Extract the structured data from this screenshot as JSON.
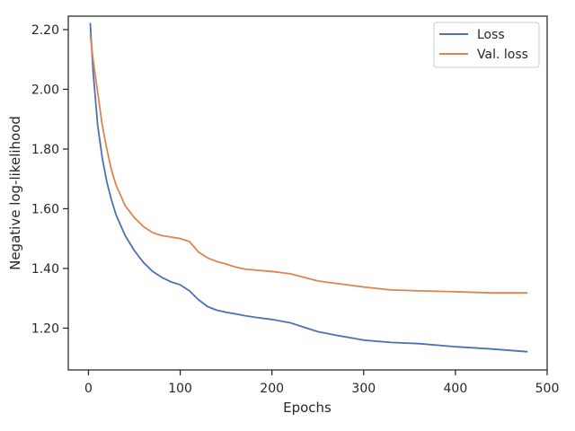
{
  "chart_data": {
    "type": "line",
    "xlabel": "Epochs",
    "ylabel": "Negative log-likelihood",
    "xlim": [
      -22,
      500
    ],
    "ylim": [
      1.06,
      2.245
    ],
    "xticks": [
      0,
      100,
      200,
      300,
      400,
      500
    ],
    "xtick_labels": [
      "0",
      "100",
      "200",
      "300",
      "400",
      "500"
    ],
    "yticks": [
      1.2,
      1.4,
      1.6,
      1.8,
      2.0,
      2.2
    ],
    "ytick_labels": [
      "1.20",
      "1.40",
      "1.60",
      "1.80",
      "2.00",
      "2.20"
    ],
    "grid": false,
    "legend": "top-right",
    "series": [
      {
        "name": "Loss",
        "color": "#4c72b0",
        "x": [
          2,
          5,
          10,
          15,
          20,
          25,
          30,
          40,
          50,
          60,
          70,
          80,
          90,
          100,
          110,
          120,
          130,
          140,
          150,
          160,
          170,
          180,
          200,
          220,
          250,
          270,
          300,
          330,
          360,
          400,
          440,
          478
        ],
        "y": [
          2.22,
          2.06,
          1.88,
          1.77,
          1.69,
          1.63,
          1.58,
          1.51,
          1.46,
          1.42,
          1.39,
          1.37,
          1.355,
          1.345,
          1.325,
          1.295,
          1.272,
          1.26,
          1.253,
          1.248,
          1.242,
          1.237,
          1.229,
          1.218,
          1.188,
          1.176,
          1.16,
          1.152,
          1.148,
          1.138,
          1.13,
          1.121
        ]
      },
      {
        "name": "Val. loss",
        "color": "#dd8452",
        "x": [
          2,
          5,
          10,
          15,
          20,
          25,
          30,
          40,
          50,
          60,
          70,
          80,
          90,
          100,
          110,
          120,
          130,
          140,
          150,
          160,
          170,
          180,
          200,
          220,
          250,
          270,
          300,
          330,
          360,
          400,
          440,
          478
        ],
        "y": [
          2.18,
          2.1,
          1.99,
          1.88,
          1.8,
          1.73,
          1.68,
          1.61,
          1.57,
          1.54,
          1.52,
          1.51,
          1.505,
          1.5,
          1.49,
          1.455,
          1.435,
          1.423,
          1.415,
          1.405,
          1.398,
          1.395,
          1.39,
          1.382,
          1.358,
          1.35,
          1.338,
          1.328,
          1.325,
          1.322,
          1.318,
          1.318
        ]
      }
    ]
  }
}
